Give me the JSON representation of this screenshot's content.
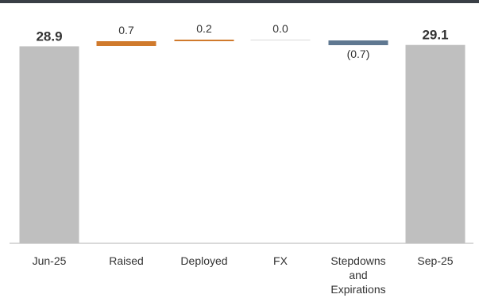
{
  "chart_data": {
    "type": "bar",
    "subtype": "waterfall",
    "categories": [
      "Jun-25",
      "Raised",
      "Deployed",
      "FX",
      "Stepdowns and Expirations",
      "Sep-25"
    ],
    "category_label_lines": [
      [
        "Jun-25"
      ],
      [
        "Raised"
      ],
      [
        "Deployed"
      ],
      [
        "FX"
      ],
      [
        "Stepdowns",
        "and",
        "Expirations"
      ],
      [
        "Sep-25"
      ]
    ],
    "values": [
      28.9,
      0.7,
      0.2,
      0.0,
      -0.7,
      29.1
    ],
    "bar_kind": [
      "total",
      "delta",
      "delta",
      "delta",
      "delta",
      "total"
    ],
    "value_labels": [
      "28.9",
      "0.7",
      "0.2",
      "0.0",
      "(0.7)",
      "29.1"
    ],
    "title": "",
    "xlabel": "",
    "ylabel": "",
    "ylim": [
      0,
      29.3
    ],
    "grid": false,
    "colors": {
      "total": "#bfbfbf",
      "increase": "#d07a2c",
      "decrease": "#5f7891",
      "zero": "#d9d9d9",
      "axis": "#b3b3b3",
      "text": "#333333"
    }
  }
}
